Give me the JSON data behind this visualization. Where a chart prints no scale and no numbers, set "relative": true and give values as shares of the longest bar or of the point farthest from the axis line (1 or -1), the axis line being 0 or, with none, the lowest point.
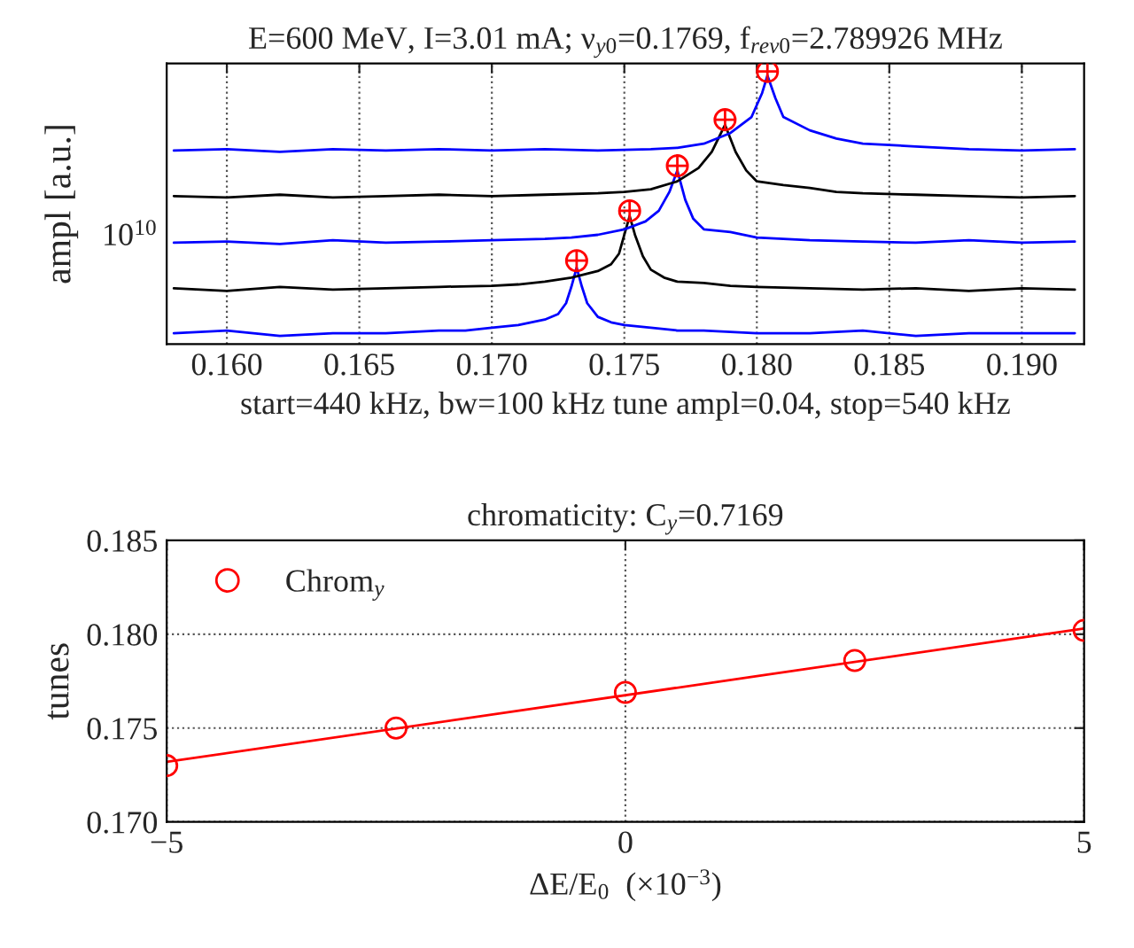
{
  "chart_data": [
    {
      "type": "line",
      "title": "E=600 MeV, I=3.01 mA; ν$_{y0}$=0.1769, f$_{rev0}$=2.789926 MHz",
      "xlabel": "start=440 kHz, bw=100 kHz tune ampl=0.04, stop=540 kHz",
      "ylabel": "ampl [a.u.]",
      "relative": true,
      "legend": false,
      "grid": "x",
      "xlim": [
        0.15773,
        0.19235
      ],
      "xticks": [
        {
          "value": 0.16,
          "label": "0.160"
        },
        {
          "value": 0.165,
          "label": "0.165"
        },
        {
          "value": 0.17,
          "label": "0.170"
        },
        {
          "value": 0.175,
          "label": "0.175"
        },
        {
          "value": 0.18,
          "label": "0.180"
        },
        {
          "value": 0.185,
          "label": "0.185"
        },
        {
          "value": 0.19,
          "label": "0.190"
        }
      ],
      "annotations": [
        "10$^{10}$"
      ],
      "series": [
        {
          "color": "#0000ff",
          "x": [
            0.158,
            0.16,
            0.162,
            0.164,
            0.166,
            0.168,
            0.169,
            0.17,
            0.171,
            0.172,
            0.1725,
            0.1728,
            0.173,
            0.1732,
            0.1734,
            0.1736,
            0.174,
            0.1745,
            0.175,
            0.176,
            0.177,
            0.178,
            0.18,
            0.182,
            0.184,
            0.186,
            0.188,
            0.19,
            0.192
          ],
          "values": [
            0.04,
            0.05,
            0.03,
            0.04,
            0.04,
            0.05,
            0.05,
            0.06,
            0.07,
            0.09,
            0.11,
            0.15,
            0.21,
            0.28,
            0.21,
            0.15,
            0.1,
            0.08,
            0.07,
            0.06,
            0.05,
            0.05,
            0.04,
            0.04,
            0.05,
            0.03,
            0.04,
            0.04,
            0.04
          ]
        },
        {
          "color": "#000000",
          "x": [
            0.158,
            0.16,
            0.162,
            0.164,
            0.166,
            0.168,
            0.17,
            0.171,
            0.172,
            0.173,
            0.174,
            0.1745,
            0.1748,
            0.175,
            0.1752,
            0.1754,
            0.1757,
            0.176,
            0.1765,
            0.177,
            0.178,
            0.179,
            0.18,
            0.182,
            0.184,
            0.186,
            0.188,
            0.19,
            0.192
          ],
          "values": [
            0.205,
            0.195,
            0.21,
            0.2,
            0.205,
            0.21,
            0.214,
            0.219,
            0.229,
            0.244,
            0.268,
            0.293,
            0.332,
            0.401,
            0.47,
            0.401,
            0.322,
            0.273,
            0.244,
            0.229,
            0.224,
            0.214,
            0.21,
            0.205,
            0.2,
            0.205,
            0.195,
            0.205,
            0.2
          ]
        },
        {
          "color": "#0000ff",
          "x": [
            0.158,
            0.16,
            0.162,
            0.164,
            0.166,
            0.168,
            0.17,
            0.172,
            0.173,
            0.174,
            0.175,
            0.1758,
            0.1763,
            0.1767,
            0.177,
            0.1773,
            0.1776,
            0.178,
            0.179,
            0.18,
            0.181,
            0.182,
            0.184,
            0.186,
            0.188,
            0.19,
            0.192
          ],
          "values": [
            0.372,
            0.376,
            0.367,
            0.381,
            0.372,
            0.376,
            0.381,
            0.386,
            0.391,
            0.401,
            0.421,
            0.45,
            0.489,
            0.558,
            0.637,
            0.529,
            0.46,
            0.421,
            0.411,
            0.391,
            0.386,
            0.381,
            0.376,
            0.372,
            0.381,
            0.372,
            0.376
          ]
        },
        {
          "color": "#000000",
          "x": [
            0.158,
            0.16,
            0.162,
            0.164,
            0.166,
            0.168,
            0.17,
            0.172,
            0.174,
            0.175,
            0.176,
            0.177,
            0.1778,
            0.1783,
            0.1788,
            0.1792,
            0.1796,
            0.18,
            0.181,
            0.182,
            0.183,
            0.184,
            0.186,
            0.188,
            0.19,
            0.192
          ],
          "values": [
            0.543,
            0.538,
            0.548,
            0.538,
            0.543,
            0.548,
            0.543,
            0.548,
            0.553,
            0.558,
            0.568,
            0.597,
            0.646,
            0.705,
            0.804,
            0.705,
            0.637,
            0.597,
            0.583,
            0.573,
            0.558,
            0.553,
            0.548,
            0.543,
            0.538,
            0.543
          ]
        },
        {
          "color": "#0000ff",
          "x": [
            0.158,
            0.16,
            0.162,
            0.164,
            0.166,
            0.168,
            0.17,
            0.172,
            0.174,
            0.176,
            0.177,
            0.178,
            0.179,
            0.1798,
            0.1802,
            0.1804,
            0.1807,
            0.181,
            0.182,
            0.183,
            0.184,
            0.186,
            0.188,
            0.19,
            0.192
          ],
          "values": [
            0.71,
            0.715,
            0.705,
            0.715,
            0.71,
            0.715,
            0.71,
            0.715,
            0.71,
            0.715,
            0.72,
            0.735,
            0.774,
            0.833,
            0.921,
            0.985,
            0.902,
            0.833,
            0.784,
            0.754,
            0.735,
            0.725,
            0.715,
            0.71,
            0.715
          ]
        },
        {
          "type": "scatter",
          "marker": "circle",
          "color": "#ff0000",
          "x": [
            0.1732,
            0.1752,
            0.177,
            0.1788,
            0.1804
          ],
          "values": [
            0.306,
            0.489,
            0.654,
            0.823,
            1.0
          ]
        }
      ]
    },
    {
      "type": "scatter",
      "title": "chromaticity: C$_{y}$=0.7169",
      "xlabel": "ΔE/E$_{0}$  (×10$^{−3}$)",
      "ylabel": "tunes",
      "legend": "top left",
      "grid": true,
      "xlim": [
        -5,
        5
      ],
      "xticks": [
        {
          "value": -5,
          "label": "−5"
        },
        0,
        5
      ],
      "ylim": [
        0.17,
        0.185
      ],
      "yticks": [
        {
          "value": 0.17,
          "label": "0.170"
        },
        {
          "value": 0.175,
          "label": "0.175"
        },
        {
          "value": 0.18,
          "label": "0.180"
        },
        {
          "value": 0.185,
          "label": "0.185"
        }
      ],
      "series": [
        {
          "name": "Chrom$_{y}$",
          "marker": "circle",
          "color": "#ff0000",
          "x": [
            -5,
            -2.5,
            0,
            2.5,
            5
          ],
          "values": [
            0.173,
            0.175,
            0.1769,
            0.1786,
            0.1802
          ]
        },
        {
          "type": "line",
          "line_style": "solid",
          "color": "#ff0000",
          "x": [
            -5,
            5
          ],
          "values": [
            0.1732,
            0.1803
          ]
        }
      ]
    }
  ]
}
